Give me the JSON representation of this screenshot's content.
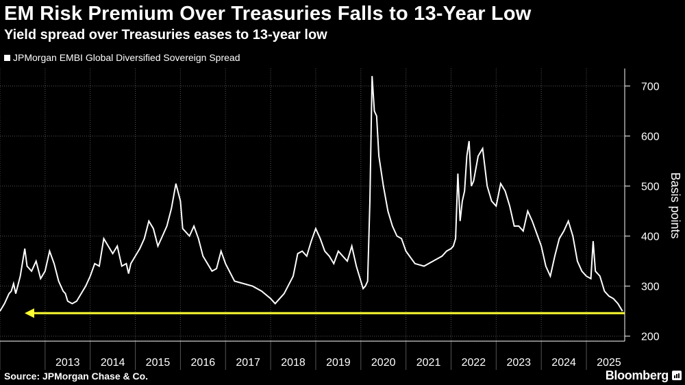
{
  "header": {
    "title": "EM Risk Premium Over Treasuries Falls to 13-Year Low",
    "subtitle": "Yield spread over Treasuries eases to 13-year low"
  },
  "footer": {
    "source": "Source: JPMorgan Chase & Co.",
    "brand": "Bloomberg"
  },
  "colors": {
    "background": "#000000",
    "series": "#ffffff",
    "reference_arrow": "#ffff33",
    "grid": "#555555"
  },
  "chart_data": {
    "type": "line",
    "title": "EM Risk Premium Over Treasuries Falls to 13-Year Low",
    "subtitle": "Yield spread over Treasuries eases to 13-year low",
    "ylabel": "Basis points",
    "xlabel": "",
    "ylim": [
      190,
      735
    ],
    "xlim": [
      2012.0,
      2025.85
    ],
    "yticks": [
      200,
      300,
      400,
      500,
      600,
      700
    ],
    "x_tick_labels": [
      "2013",
      "2014",
      "2015",
      "2016",
      "2017",
      "2018",
      "2019",
      "2020",
      "2021",
      "2022",
      "2023",
      "2024",
      "2025"
    ],
    "grid": true,
    "legend": "top-left",
    "series": [
      {
        "name": "JPMorgan EMBI Global Diversified Sovereign Spread",
        "x": [
          2012.0,
          2012.1,
          2012.2,
          2012.25,
          2012.3,
          2012.35,
          2012.45,
          2012.55,
          2012.6,
          2012.7,
          2012.8,
          2012.9,
          2013.0,
          2013.1,
          2013.2,
          2013.3,
          2013.4,
          2013.45,
          2013.5,
          2013.6,
          2013.7,
          2013.8,
          2013.9,
          2014.0,
          2014.1,
          2014.2,
          2014.3,
          2014.4,
          2014.5,
          2014.6,
          2014.7,
          2014.8,
          2014.85,
          2014.9,
          2015.0,
          2015.1,
          2015.2,
          2015.3,
          2015.4,
          2015.5,
          2015.6,
          2015.7,
          2015.8,
          2015.9,
          2016.0,
          2016.05,
          2016.1,
          2016.2,
          2016.3,
          2016.4,
          2016.5,
          2016.6,
          2016.7,
          2016.8,
          2016.9,
          2017.0,
          2017.2,
          2017.4,
          2017.6,
          2017.8,
          2018.0,
          2018.1,
          2018.3,
          2018.5,
          2018.6,
          2018.7,
          2018.8,
          2018.9,
          2019.0,
          2019.1,
          2019.2,
          2019.3,
          2019.4,
          2019.5,
          2019.6,
          2019.7,
          2019.8,
          2019.9,
          2020.0,
          2020.05,
          2020.1,
          2020.15,
          2020.2,
          2020.25,
          2020.3,
          2020.35,
          2020.4,
          2020.5,
          2020.6,
          2020.7,
          2020.8,
          2020.9,
          2021.0,
          2021.2,
          2021.4,
          2021.6,
          2021.8,
          2021.9,
          2022.0,
          2022.05,
          2022.1,
          2022.15,
          2022.2,
          2022.25,
          2022.3,
          2022.35,
          2022.4,
          2022.45,
          2022.5,
          2022.6,
          2022.7,
          2022.8,
          2022.9,
          2023.0,
          2023.1,
          2023.2,
          2023.3,
          2023.4,
          2023.5,
          2023.6,
          2023.7,
          2023.8,
          2023.9,
          2024.0,
          2024.1,
          2024.2,
          2024.3,
          2024.4,
          2024.5,
          2024.6,
          2024.7,
          2024.8,
          2024.9,
          2025.0,
          2025.1,
          2025.15,
          2025.2,
          2025.3,
          2025.4,
          2025.5,
          2025.6,
          2025.7,
          2025.8
        ],
        "values": [
          250,
          265,
          285,
          290,
          305,
          285,
          320,
          375,
          340,
          330,
          350,
          315,
          330,
          370,
          345,
          310,
          290,
          285,
          270,
          265,
          270,
          285,
          300,
          320,
          345,
          340,
          395,
          380,
          365,
          380,
          340,
          345,
          325,
          345,
          360,
          375,
          395,
          430,
          415,
          380,
          400,
          420,
          455,
          505,
          470,
          415,
          410,
          400,
          420,
          395,
          360,
          345,
          330,
          335,
          370,
          345,
          310,
          305,
          300,
          290,
          275,
          265,
          285,
          320,
          365,
          370,
          360,
          390,
          415,
          395,
          370,
          360,
          345,
          370,
          360,
          350,
          380,
          340,
          310,
          295,
          300,
          310,
          470,
          720,
          650,
          640,
          560,
          500,
          450,
          420,
          400,
          395,
          370,
          345,
          340,
          350,
          360,
          370,
          375,
          380,
          395,
          525,
          430,
          470,
          490,
          560,
          590,
          500,
          510,
          560,
          575,
          500,
          470,
          460,
          505,
          490,
          460,
          420,
          420,
          410,
          450,
          430,
          405,
          380,
          340,
          320,
          360,
          395,
          410,
          430,
          400,
          350,
          330,
          320,
          315,
          390,
          330,
          320,
          290,
          280,
          275,
          265,
          250
        ]
      }
    ],
    "reference_line": {
      "y": 246
    }
  }
}
